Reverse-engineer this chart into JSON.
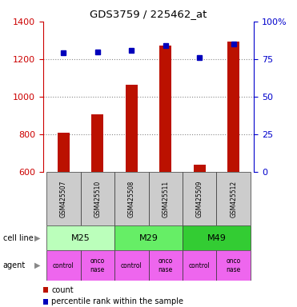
{
  "title": "GDS3759 / 225462_at",
  "samples": [
    "GSM425507",
    "GSM425510",
    "GSM425508",
    "GSM425511",
    "GSM425509",
    "GSM425512"
  ],
  "counts": [
    810,
    905,
    1065,
    1270,
    640,
    1295
  ],
  "percentile_ranks": [
    79,
    80,
    81,
    84,
    76,
    85
  ],
  "cell_lines": [
    {
      "label": "M25",
      "span": [
        0,
        2
      ],
      "color": "#bbffbb"
    },
    {
      "label": "M29",
      "span": [
        2,
        4
      ],
      "color": "#66ee66"
    },
    {
      "label": "M49",
      "span": [
        4,
        6
      ],
      "color": "#33cc33"
    }
  ],
  "agents": [
    "control",
    "onconase",
    "control",
    "onconase",
    "control",
    "onconase"
  ],
  "agent_color": "#ee66ee",
  "bar_color": "#bb1100",
  "point_color": "#0000bb",
  "ylim_left": [
    600,
    1400
  ],
  "ylim_right": [
    0,
    100
  ],
  "yticks_left": [
    600,
    800,
    1000,
    1200,
    1400
  ],
  "yticks_right": [
    0,
    25,
    50,
    75,
    100
  ],
  "background_color": "#ffffff",
  "grid_color": "#888888",
  "left_axis_color": "#cc0000",
  "right_axis_color": "#0000cc",
  "bar_width": 0.35
}
